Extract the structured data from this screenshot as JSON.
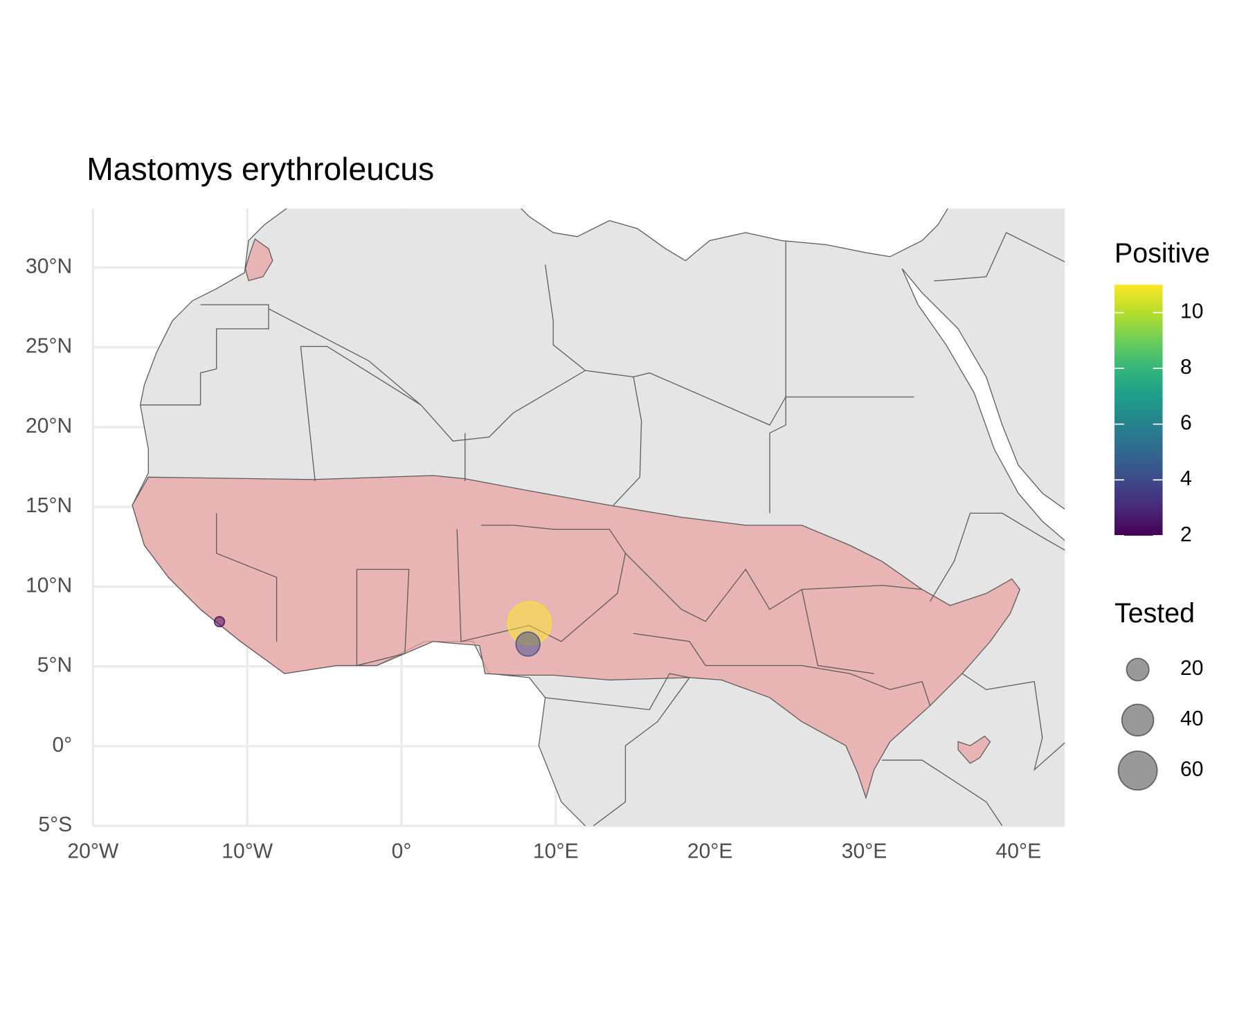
{
  "chart_data": {
    "type": "map",
    "title": "Mastomys erythroleucus",
    "x": [
      -11.8,
      8.3,
      8.2
    ],
    "y": [
      7.8,
      7.7,
      6.4
    ],
    "tested": [
      4,
      74,
      23
    ],
    "positive": [
      2,
      11,
      4
    ],
    "xlim": [
      -20,
      43
    ],
    "ylim": [
      -5,
      33.7
    ],
    "xticks": [
      {
        "value": -20,
        "label": "20°W"
      },
      {
        "value": -10,
        "label": "10°W"
      },
      {
        "value": 0,
        "label": "0°"
      },
      {
        "value": 10,
        "label": "10°E"
      },
      {
        "value": 20,
        "label": "20°E"
      },
      {
        "value": 30,
        "label": "30°E"
      },
      {
        "value": 40,
        "label": "40°E"
      }
    ],
    "yticks": [
      {
        "value": -5,
        "label": "5°S"
      },
      {
        "value": 0,
        "label": "0°"
      },
      {
        "value": 5,
        "label": "5°N"
      },
      {
        "value": 10,
        "label": "10°N"
      },
      {
        "value": 15,
        "label": "15°N"
      },
      {
        "value": 20,
        "label": "20°N"
      },
      {
        "value": 25,
        "label": "25°N"
      },
      {
        "value": 30,
        "label": "30°N"
      }
    ],
    "grid": true,
    "color_title": "Positive",
    "colorlim": [
      2,
      11
    ],
    "colorticks": [
      2,
      4,
      6,
      8,
      10
    ],
    "size_title": "Tested",
    "size_legend": [
      20,
      40,
      60
    ]
  }
}
